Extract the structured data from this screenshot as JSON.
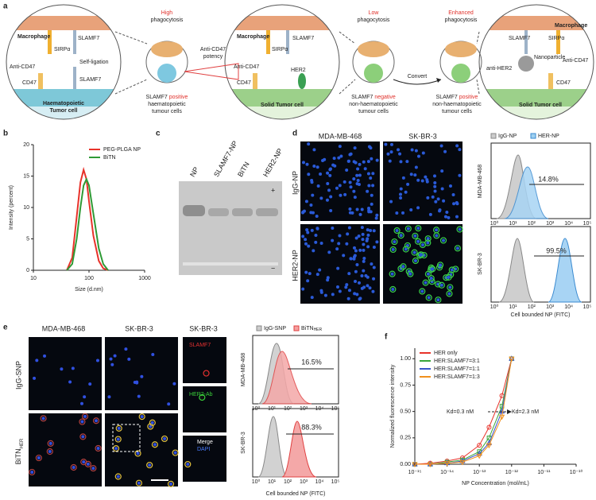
{
  "a": {
    "label": "a",
    "left_cell": {
      "macrophage": "Macrophage",
      "sirpa": "SIRPα",
      "slamf7_top": "SLAMF7",
      "self_ligation": "Self-ligation",
      "anti_cd47": "Anti-CD47",
      "cd47": "CD47",
      "slamf7_bottom": "SLAMF7",
      "tumor": [
        "Haematopoietic",
        "Tumor cell"
      ]
    },
    "high": {
      "level": "High",
      "word": "phagocytosis",
      "marker": "SLAMF7",
      "status": "positive",
      "desc": [
        "haematopoietic",
        "tumour cells"
      ]
    },
    "potency": [
      "Anti-CD47",
      "potency"
    ],
    "middle_cell": {
      "macrophage": "Macrophage",
      "anti_cd47": "Anti-CD47",
      "sirpa": "SIRPα",
      "slamf7": "SLAMF7",
      "cd47": "CD47",
      "her2": "HER2",
      "tumor": "Solid Tumor cell"
    },
    "low": {
      "level": "Low",
      "word": "phagocytosis",
      "marker": "SLAMF7",
      "status": "negative",
      "desc": [
        "non-haematopoietic",
        "tumour cells"
      ]
    },
    "convert": "Convert",
    "enhanced": {
      "level": "Enhanced",
      "word": "phagocytosis",
      "marker": "SLAMF7",
      "status": "positive",
      "desc": [
        "non-haematopoietic",
        "tumour cells"
      ]
    },
    "right_cell": {
      "macrophage": "Macrophage",
      "slamf7": "SLAMF7",
      "sirpa": "SIRPα",
      "nanoparticle": "Nanoparticle",
      "anti_her2": "anti-HER2",
      "anti_cd47": "Anti-CD47",
      "cd47": "CD47",
      "tumor": "Solid Tumor cell"
    }
  },
  "c": {
    "label": "c",
    "lanes": [
      "NP",
      "SLAMF7-NP",
      "BiTN",
      "HER2-NP"
    ],
    "plus": "+",
    "minus": "−"
  },
  "d": {
    "label": "d",
    "columns": [
      "MDA-MB-468",
      "SK-BR-3"
    ],
    "rows": [
      "IgG-NP",
      "HER2-NP"
    ],
    "legend": [
      "IgG-NP",
      "HER-NP"
    ],
    "flow_rows": [
      "MDA-MB-468",
      "SK-BR-3"
    ],
    "percents": [
      "14.8%",
      "99.5%"
    ],
    "flow_ticks": [
      "10⁰",
      "10¹",
      "10²",
      "10³",
      "10⁴",
      "10⁵"
    ],
    "x_label": "Cell bounded NP (FITC)"
  },
  "e": {
    "label": "e",
    "columns": [
      "MDA-MB-468",
      "SK-BR-3",
      "SK-BR-3"
    ],
    "rows": [
      {
        "text": "IgG-SNP"
      },
      {
        "text": "BiTN",
        "sub": "HER"
      }
    ],
    "stains": [
      "SLAMF7",
      "HER2-Ab",
      "Merge",
      "DAPI"
    ],
    "legend": [
      {
        "text": "IgG-SNP"
      },
      {
        "text": "BiTN",
        "sub": "HER"
      }
    ],
    "flow_rows": [
      "MDA-MB-468",
      "SK-BR-3"
    ],
    "percents": [
      "16.5%",
      "88.3%"
    ],
    "flow_ticks": [
      "10⁰",
      "10¹",
      "10²",
      "10³",
      "10⁴",
      "10⁵"
    ],
    "x_label": "Cell bounded NP (FITC)"
  },
  "chart_data": [
    {
      "type": "line",
      "panel": "b",
      "x_label": "Size (d.nm)",
      "y_label": "Intensity (percent)",
      "xscale": "log",
      "xlim": [
        10,
        1000
      ],
      "xticks": [
        10,
        100,
        1000
      ],
      "ylim": [
        0,
        20
      ],
      "yticks": [
        0,
        5,
        10,
        15,
        20
      ],
      "legend": "upper right",
      "x": [
        40,
        50,
        60,
        70,
        80,
        90,
        100,
        120,
        150,
        180,
        220
      ],
      "series": [
        {
          "name": "PEG-PLGA NP",
          "color": "#e8322a",
          "values": [
            0,
            2,
            8.5,
            14,
            16,
            14.5,
            11,
            5.5,
            1.5,
            0.3,
            0
          ]
        },
        {
          "name": "BiTN",
          "color": "#2f9a35",
          "values": [
            0,
            1,
            5,
            10,
            13.5,
            14.5,
            13.5,
            9,
            3.5,
            1,
            0
          ]
        }
      ]
    },
    {
      "type": "line",
      "panel": "f",
      "x_label": "NP Concentration (mol/mL)",
      "y_label": "Normalized fluorescence intensity",
      "xscale": "log",
      "xlim": [
        1e-15,
        1e-10
      ],
      "xticks": [
        {
          "value": 1e-15,
          "label": "10⁻¹⁵"
        },
        {
          "value": 1e-14,
          "label": "10⁻¹⁴"
        },
        {
          "value": 1e-13,
          "label": "10⁻¹³"
        },
        {
          "value": 1e-12,
          "label": "10⁻¹²"
        },
        {
          "value": 1e-11,
          "label": "10⁻¹¹"
        },
        {
          "value": 1e-10,
          "label": "10⁻¹⁰"
        }
      ],
      "ylim": [
        0,
        1.1
      ],
      "yticks": [
        {
          "value": 0,
          "label": "0.00"
        },
        {
          "value": 0.25,
          "label": "0.25"
        },
        {
          "value": 0.5,
          "label": "0.50"
        },
        {
          "value": 0.75,
          "label": "0.75"
        },
        {
          "value": 1,
          "label": "1.00"
        }
      ],
      "legend": "upper left",
      "annotations": [
        "Kd=0.3 nM",
        "Kd=2.3 nM"
      ],
      "x": [
        1e-15,
        3e-15,
        1e-14,
        3e-14,
        1e-13,
        2e-13,
        5e-13,
        1e-12
      ],
      "series": [
        {
          "name": "HER only",
          "color": "#e8322a",
          "marker": "circle",
          "values": [
            0,
            0.01,
            0.03,
            0.06,
            0.18,
            0.35,
            0.65,
            1
          ]
        },
        {
          "name": "HER:SLAMF7=3:1",
          "color": "#3aa53a",
          "marker": "square",
          "values": [
            0,
            0,
            0.02,
            0.04,
            0.12,
            0.25,
            0.55,
            1
          ]
        },
        {
          "name": "HER:SLAMF7=1:1",
          "color": "#3a55c8",
          "marker": "triangle",
          "values": [
            0,
            0,
            0.01,
            0.03,
            0.1,
            0.2,
            0.5,
            1
          ]
        },
        {
          "name": "HER:SLAMF7=1:3",
          "color": "#f0901e",
          "marker": "down",
          "values": [
            0,
            0,
            0.01,
            0.02,
            0.08,
            0.18,
            0.45,
            1
          ]
        }
      ]
    }
  ]
}
